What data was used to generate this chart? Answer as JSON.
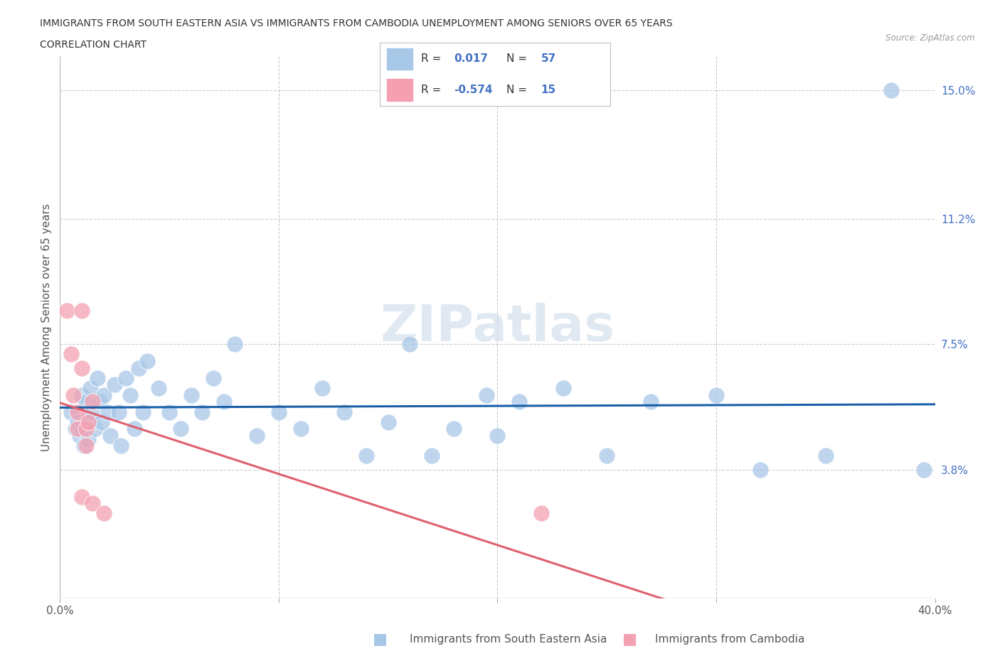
{
  "title_line1": "IMMIGRANTS FROM SOUTH EASTERN ASIA VS IMMIGRANTS FROM CAMBODIA UNEMPLOYMENT AMONG SENIORS OVER 65 YEARS",
  "title_line2": "CORRELATION CHART",
  "source": "Source: ZipAtlas.com",
  "ylabel": "Unemployment Among Seniors over 65 years",
  "xlim": [
    0.0,
    0.4
  ],
  "ylim": [
    0.0,
    0.16
  ],
  "r_sea": 0.017,
  "n_sea": 57,
  "r_cam": -0.574,
  "n_cam": 15,
  "color_sea": "#a8c8e8",
  "color_cam": "#f4a0b0",
  "line_color_sea": "#1a5fa8",
  "line_color_cam": "#e06070",
  "watermark": "ZIPatlas",
  "sea_x": [
    0.005,
    0.007,
    0.008,
    0.009,
    0.01,
    0.01,
    0.011,
    0.012,
    0.013,
    0.013,
    0.014,
    0.015,
    0.016,
    0.017,
    0.018,
    0.019,
    0.02,
    0.022,
    0.023,
    0.025,
    0.027,
    0.028,
    0.03,
    0.032,
    0.034,
    0.036,
    0.038,
    0.04,
    0.045,
    0.05,
    0.055,
    0.06,
    0.065,
    0.07,
    0.075,
    0.08,
    0.09,
    0.1,
    0.11,
    0.12,
    0.13,
    0.14,
    0.15,
    0.16,
    0.17,
    0.18,
    0.195,
    0.2,
    0.21,
    0.23,
    0.25,
    0.27,
    0.3,
    0.32,
    0.35,
    0.38,
    0.395
  ],
  "sea_y": [
    0.055,
    0.05,
    0.052,
    0.048,
    0.06,
    0.05,
    0.045,
    0.058,
    0.053,
    0.047,
    0.062,
    0.055,
    0.05,
    0.065,
    0.058,
    0.052,
    0.06,
    0.055,
    0.048,
    0.063,
    0.055,
    0.045,
    0.065,
    0.06,
    0.05,
    0.068,
    0.055,
    0.07,
    0.062,
    0.055,
    0.05,
    0.06,
    0.055,
    0.065,
    0.058,
    0.075,
    0.048,
    0.055,
    0.05,
    0.062,
    0.055,
    0.042,
    0.052,
    0.075,
    0.042,
    0.05,
    0.06,
    0.048,
    0.058,
    0.062,
    0.042,
    0.058,
    0.06,
    0.038,
    0.042,
    0.15,
    0.038
  ],
  "cam_x": [
    0.003,
    0.005,
    0.006,
    0.008,
    0.008,
    0.01,
    0.01,
    0.01,
    0.012,
    0.012,
    0.013,
    0.015,
    0.015,
    0.02,
    0.22
  ],
  "cam_y": [
    0.085,
    0.072,
    0.06,
    0.05,
    0.055,
    0.085,
    0.068,
    0.03,
    0.05,
    0.045,
    0.052,
    0.058,
    0.028,
    0.025,
    0.025
  ]
}
